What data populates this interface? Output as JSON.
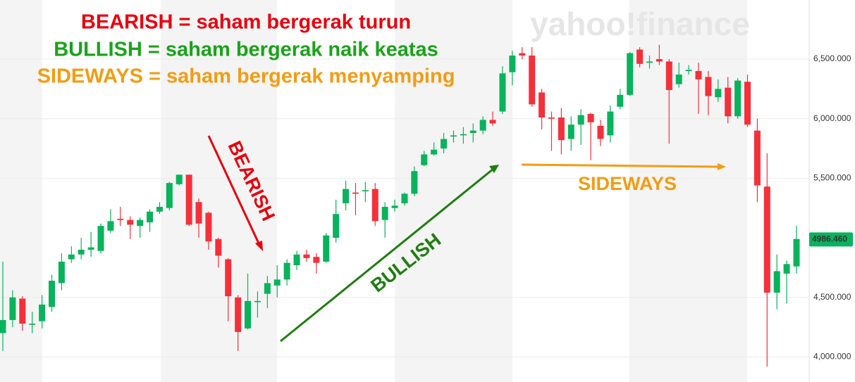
{
  "chart_data": {
    "type": "candlestick",
    "headlines": [
      {
        "text": "BEARISH = saham bergerak turun",
        "color": "#e8000d"
      },
      {
        "text": "BULLISH = saham bergerak naik keatas",
        "color": "#1aa31a"
      },
      {
        "text": "SIDEWAYS = saham bergerak menyamping",
        "color": "#f39c12"
      }
    ],
    "annotations": [
      {
        "text": "BEARISH",
        "color": "#e8000d"
      },
      {
        "text": "BULLISH",
        "color": "#1e7d10"
      },
      {
        "text": "SIDEWAYS",
        "color": "#f39c12"
      }
    ],
    "watermark": "yahoo!finance",
    "up_color": "#08b35c",
    "down_color": "#f5303a",
    "ylim": [
      3790,
      6996
    ],
    "yticks": [
      {
        "value": 4000,
        "label": "4,000.000"
      },
      {
        "value": 4500,
        "label": "4,500.000"
      },
      {
        "value": 5500,
        "label": "5,500.000"
      },
      {
        "value": 6000,
        "label": "6,000.000"
      },
      {
        "value": 6500,
        "label": "6,500.000"
      }
    ],
    "last_price": {
      "value": 4986.46,
      "label": "4986.460"
    },
    "open": [
      4200,
      4310,
      4490,
      4270,
      4300,
      4420,
      4620,
      4820,
      4860,
      4900,
      4890,
      5060,
      5160,
      5150,
      5100,
      5130,
      5220,
      5250,
      5450,
      5530,
      5300,
      5210,
      4990,
      4820,
      4500,
      4240,
      4460,
      4530,
      4600,
      4650,
      4770,
      4860,
      4840,
      4800,
      5000,
      5290,
      5380,
      5390,
      5410,
      5150,
      5250,
      5290,
      5370,
      5610,
      5700,
      5750,
      5850,
      5860,
      5880,
      5900,
      5990,
      6060,
      6390,
      6550,
      6530,
      6220,
      6010,
      6010,
      5830,
      5950,
      6040,
      5940,
      5860,
      6100,
      6200,
      6580,
      6470,
      6500,
      6480,
      6290,
      6400,
      6400,
      6350,
      6180,
      6260,
      6020,
      6310,
      5900,
      5430,
      4540,
      4700,
      4760
    ],
    "high": [
      4800,
      4560,
      4510,
      4380,
      4520,
      4690,
      4870,
      4930,
      5000,
      5050,
      5120,
      5240,
      5260,
      5180,
      5170,
      5240,
      5300,
      5470,
      5530,
      5530,
      5330,
      5220,
      5000,
      4830,
      4520,
      4700,
      4550,
      4680,
      4770,
      4820,
      4890,
      4900,
      4870,
      5040,
      5320,
      5480,
      5460,
      5470,
      5460,
      5300,
      5320,
      5380,
      5600,
      5730,
      5800,
      5880,
      5900,
      5930,
      5960,
      6020,
      6060,
      6440,
      6570,
      6600,
      6600,
      6250,
      6060,
      6090,
      6020,
      6080,
      6050,
      5990,
      6110,
      6250,
      6560,
      6600,
      6530,
      6620,
      6500,
      6470,
      6450,
      6470,
      6400,
      6330,
      6350,
      6340,
      6370,
      6000,
      5710,
      4860,
      4810,
      5100
    ],
    "low": [
      4050,
      4250,
      4220,
      4200,
      4240,
      4380,
      4560,
      4790,
      4820,
      4840,
      4870,
      5040,
      5100,
      4990,
      5000,
      5050,
      5200,
      5230,
      5440,
      5100,
      5000,
      4900,
      4750,
      4300,
      4050,
      4230,
      4330,
      4410,
      4500,
      4600,
      4730,
      4800,
      4700,
      4790,
      4960,
      5230,
      5190,
      5300,
      5100,
      5000,
      5220,
      5270,
      5350,
      5600,
      5690,
      5710,
      5800,
      5790,
      5800,
      5870,
      5940,
      6040,
      6280,
      6500,
      6100,
      5910,
      5730,
      5700,
      5730,
      5780,
      5650,
      5770,
      5800,
      6080,
      6190,
      6430,
      6420,
      6450,
      5790,
      6260,
      6370,
      6040,
      6030,
      6140,
      5960,
      6000,
      5930,
      5300,
      3920,
      4400,
      4450,
      4700
    ],
    "close": [
      4310,
      4500,
      4280,
      4280,
      4440,
      4640,
      4800,
      4860,
      4900,
      4920,
      5100,
      5140,
      5150,
      5110,
      5150,
      5220,
      5260,
      5460,
      5530,
      5110,
      5120,
      4970,
      4850,
      4510,
      4210,
      4470,
      4470,
      4620,
      4650,
      4790,
      4860,
      4830,
      4790,
      5020,
      5200,
      5410,
      5370,
      5400,
      5140,
      5260,
      5270,
      5370,
      5560,
      5700,
      5740,
      5830,
      5860,
      5870,
      5900,
      5990,
      5960,
      6380,
      6530,
      6530,
      6120,
      6010,
      6000,
      5820,
      5950,
      6030,
      5970,
      5830,
      6060,
      6200,
      6550,
      6460,
      6480,
      6480,
      6240,
      6370,
      6410,
      6330,
      6190,
      6250,
      6020,
      6320,
      5950,
      5440,
      4540,
      4720,
      4780,
      4990
    ]
  }
}
